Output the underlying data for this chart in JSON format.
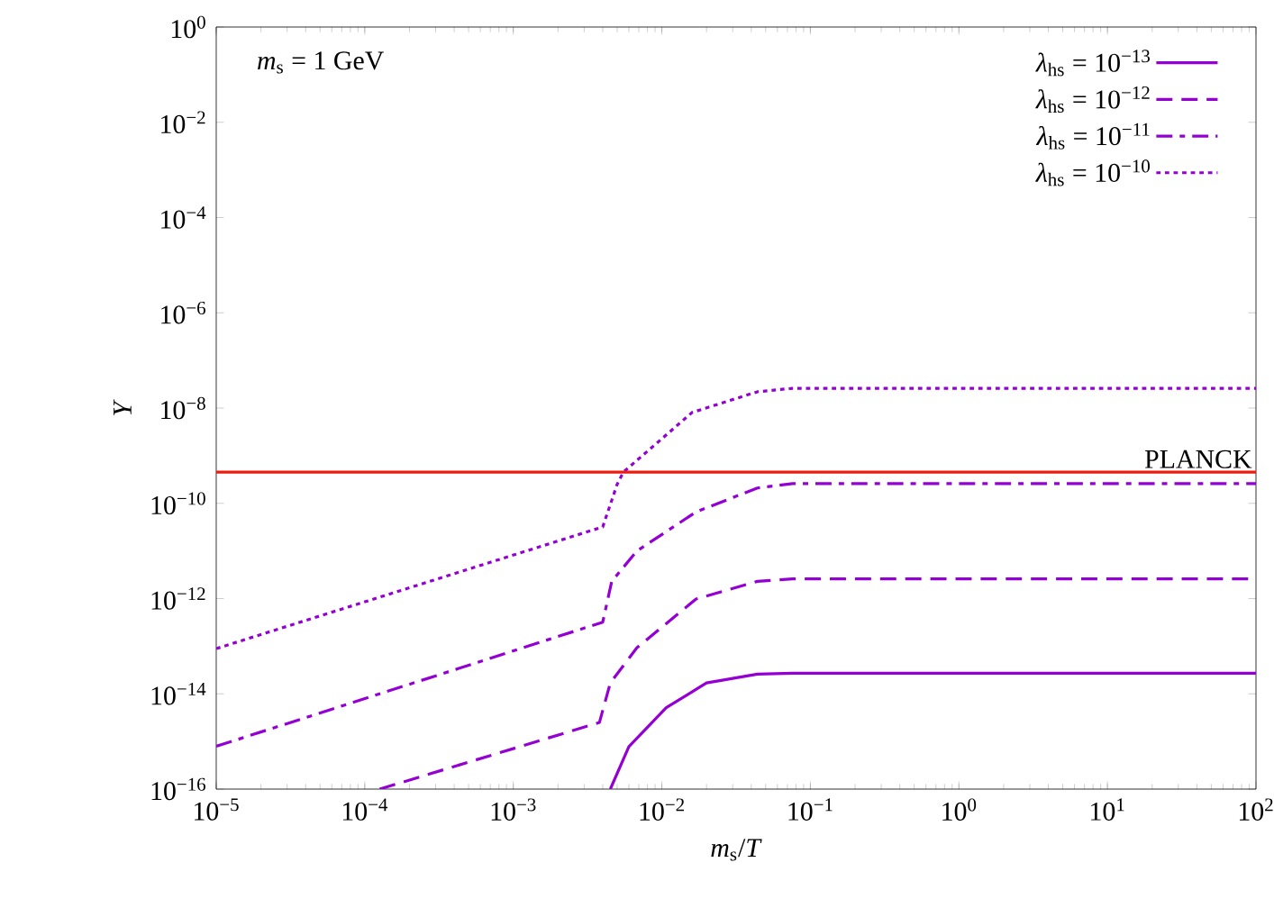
{
  "chart_data": {
    "type": "line",
    "xlabel": "*m*$_{s}$/*T*",
    "ylabel": "*Y*",
    "annotations": [
      "*m*$_{s}$ = 1 GeV"
    ],
    "log": "xy",
    "marker": "none",
    "legend": "top right",
    "xlim": [
      1e-05,
      100
    ],
    "ylim": [
      1e-16,
      1
    ],
    "xticks": [
      {
        "value": 1e-05,
        "label": "10$^{−5}$"
      },
      {
        "value": 0.0001,
        "label": "10$^{−4}$"
      },
      {
        "value": 0.001,
        "label": "10$^{−3}$"
      },
      {
        "value": 0.01,
        "label": "10$^{−2}$"
      },
      {
        "value": 0.1,
        "label": "10$^{−1}$"
      },
      {
        "value": 1,
        "label": "10$^{0}$"
      },
      {
        "value": 10,
        "label": "10$^{1}$"
      },
      {
        "value": 100,
        "label": "10$^{2}$"
      }
    ],
    "yticks": [
      {
        "value": 1e-16,
        "label": "10$^{−16}$"
      },
      {
        "value": 1e-14,
        "label": "10$^{−14}$"
      },
      {
        "value": 1e-12,
        "label": "10$^{−12}$"
      },
      {
        "value": 1e-10,
        "label": "10$^{−10}$"
      },
      {
        "value": 1e-08,
        "label": "10$^{−8}$"
      },
      {
        "value": 1e-06,
        "label": "10$^{−6}$"
      },
      {
        "value": 0.0001,
        "label": "10$^{−4}$"
      },
      {
        "value": 0.01,
        "label": "10$^{−2}$"
      },
      {
        "value": 1,
        "label": "10$^{0}$"
      }
    ],
    "ref_lines": [
      {
        "axis": "y",
        "value": 4.5e-10,
        "label": "PLANCK",
        "color": "#ee1c10"
      }
    ],
    "series": [
      {
        "name": "*λ*$_{hs}$ = 10$^{−13}$",
        "color": "#9400d3",
        "line_style": "solid",
        "x": [
          0.0045,
          0.006,
          0.0107,
          0.02,
          0.044,
          0.076,
          100
        ],
        "values": [
          1e-16,
          7.8e-16,
          5.1e-15,
          1.7e-14,
          2.6e-14,
          2.7e-14,
          2.7e-14
        ]
      },
      {
        "name": "*λ*$_{hs}$ = 10$^{−12}$",
        "color": "#9400d3",
        "line_style": "dashed",
        "x": [
          0.000126,
          0.0038,
          0.0045,
          0.0068,
          0.017,
          0.044,
          0.076,
          100
        ],
        "values": [
          1e-16,
          2.5e-15,
          1.7e-14,
          9.3e-14,
          9.8e-13,
          2.3e-12,
          2.6e-12,
          2.6e-12
        ]
      },
      {
        "name": "*λ*$_{hs}$ = 10$^{−11}$",
        "color": "#9400d3",
        "line_style": "dashdot",
        "x": [
          1e-05,
          0.004,
          0.0046,
          0.0068,
          0.017,
          0.044,
          0.076,
          100
        ],
        "values": [
          7.9e-16,
          3.2e-13,
          2.3e-12,
          1e-11,
          6.6e-11,
          2.1e-10,
          2.6e-10,
          2.6e-10
        ]
      },
      {
        "name": "*λ*$_{hs}$ = 10$^{−10}$",
        "color": "#9400d3",
        "line_style": "dotted",
        "x": [
          1e-05,
          0.004,
          0.005,
          0.0055,
          0.016,
          0.044,
          0.076,
          100
        ],
        "values": [
          8.9e-14,
          3.2e-11,
          2.5e-10,
          4.5e-10,
          8.1e-09,
          2.2e-08,
          2.6e-08,
          2.6e-08
        ]
      }
    ]
  }
}
